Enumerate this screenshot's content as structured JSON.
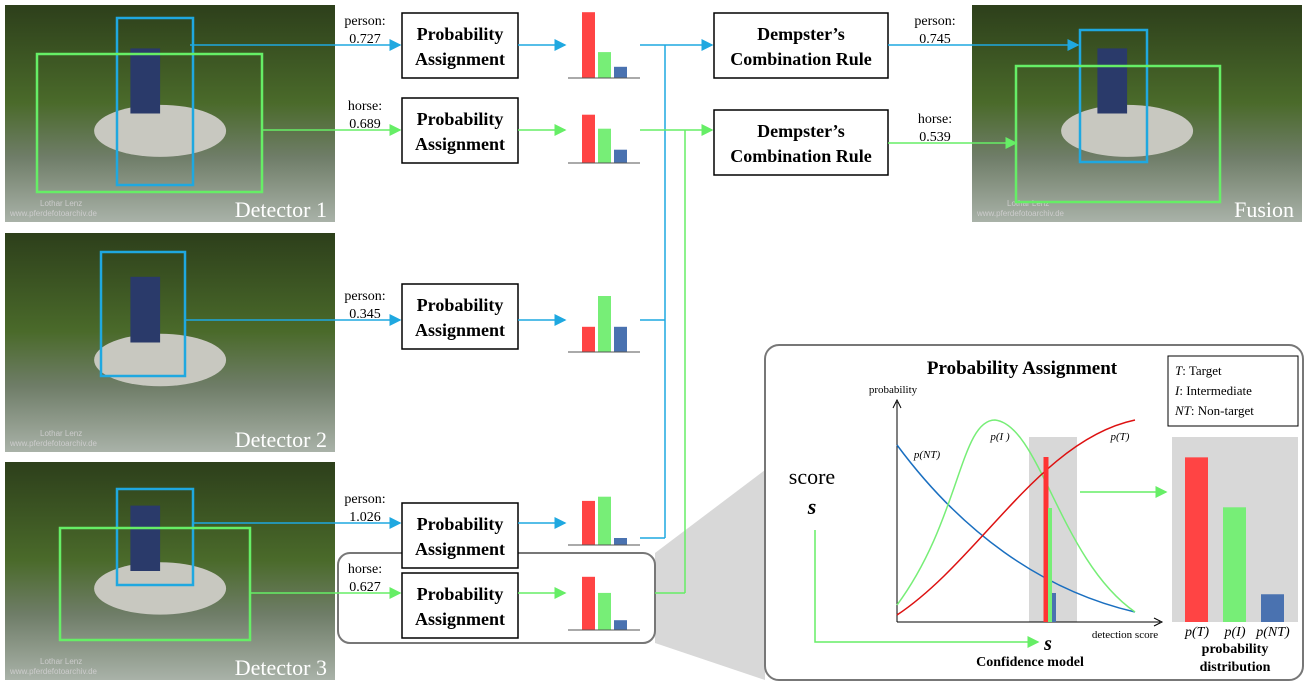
{
  "detectors": [
    "Detector 1",
    "Detector 2",
    "Detector 3"
  ],
  "fusion_label": "Fusion",
  "watermark": [
    "Lothar Lenz",
    "www.pferdefotoarchiv.de"
  ],
  "detections": [
    {
      "class": "person:",
      "score": 0.727
    },
    {
      "class": "horse:",
      "score": 0.689
    },
    {
      "class": "person:",
      "score": 0.345
    },
    {
      "class": "person:",
      "score": 1.026
    },
    {
      "class": "horse:",
      "score": 0.627
    }
  ],
  "fused": [
    {
      "class": "person:",
      "score": 0.745
    },
    {
      "class": "horse:",
      "score": 0.539
    }
  ],
  "probability_assignment": [
    "Probability",
    "Assignment"
  ],
  "dempster": [
    "Dempster’s",
    "Combination Rule"
  ],
  "mini_bars": [
    [
      0.94,
      0.37,
      0.16
    ],
    [
      0.69,
      0.49,
      0.19
    ],
    [
      0.36,
      0.8,
      0.36
    ],
    [
      0.63,
      0.69,
      0.1
    ],
    [
      0.76,
      0.53,
      0.14
    ]
  ],
  "inset": {
    "title": "Probability Assignment",
    "legend": [
      {
        "symbol": "T",
        "text": ":   Target"
      },
      {
        "symbol": "I",
        "text": ":    Intermediate"
      },
      {
        "symbol": "NT",
        "text": ": Non-target"
      }
    ],
    "y_axis": "probability",
    "x_axis": "detection score",
    "curves": [
      "p(I )",
      "p(T)",
      "p(NT)"
    ],
    "score": "score",
    "s": "s",
    "confidence_model": "Confidence model",
    "distribution": {
      "labels": [
        "p(T)",
        "p(I)",
        "p(NT)"
      ],
      "values": [
        0.89,
        0.62,
        0.15
      ],
      "caption": [
        "probability",
        "distribution"
      ]
    }
  }
}
